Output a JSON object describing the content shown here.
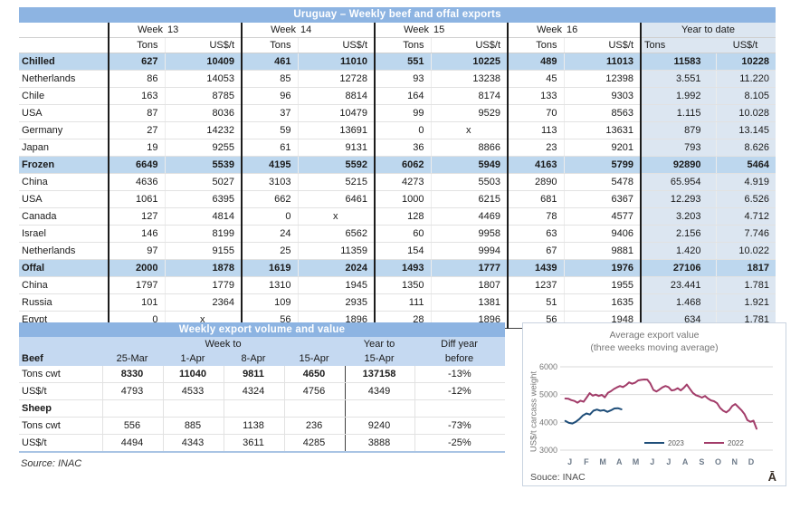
{
  "colors": {
    "title_bar": "#8db4e2",
    "category_row": "#bdd7ee",
    "ytd_background": "#dce6f1",
    "table2_header": "#c5d9f1",
    "line_2023": "#1f4e79",
    "line_2022": "#a23c69"
  },
  "table1": {
    "title": "Uruguay – Weekly beef and offal exports",
    "week_label": "Week",
    "week_numbers": [
      "13",
      "14",
      "15",
      "16"
    ],
    "ytd_label": "Year to date",
    "tons_label": "Tons",
    "usdt_label": "US$/t",
    "rows": [
      {
        "label": "Chilled",
        "category": true,
        "values": [
          "627",
          "10409",
          "461",
          "11010",
          "551",
          "10225",
          "489",
          "11013",
          "11583",
          "10228"
        ]
      },
      {
        "label": "Netherlands",
        "category": false,
        "values": [
          "86",
          "14053",
          "85",
          "12728",
          "93",
          "13238",
          "45",
          "12398",
          "3.551",
          "11.220"
        ]
      },
      {
        "label": "Chile",
        "category": false,
        "values": [
          "163",
          "8785",
          "96",
          "8814",
          "164",
          "8174",
          "133",
          "9303",
          "1.992",
          "8.105"
        ]
      },
      {
        "label": "USA",
        "category": false,
        "values": [
          "87",
          "8036",
          "37",
          "10479",
          "99",
          "9529",
          "70",
          "8563",
          "1.115",
          "10.028"
        ]
      },
      {
        "label": "Germany",
        "category": false,
        "values": [
          "27",
          "14232",
          "59",
          "13691",
          "0",
          "x",
          "113",
          "13631",
          "879",
          "13.145"
        ]
      },
      {
        "label": "Japan",
        "category": false,
        "values": [
          "19",
          "9255",
          "61",
          "9131",
          "36",
          "8866",
          "23",
          "9201",
          "793",
          "8.626"
        ]
      },
      {
        "label": "Frozen",
        "category": true,
        "values": [
          "6649",
          "5539",
          "4195",
          "5592",
          "6062",
          "5949",
          "4163",
          "5799",
          "92890",
          "5464"
        ]
      },
      {
        "label": "China",
        "category": false,
        "values": [
          "4636",
          "5027",
          "3103",
          "5215",
          "4273",
          "5503",
          "2890",
          "5478",
          "65.954",
          "4.919"
        ]
      },
      {
        "label": "USA",
        "category": false,
        "values": [
          "1061",
          "6395",
          "662",
          "6461",
          "1000",
          "6215",
          "681",
          "6367",
          "12.293",
          "6.526"
        ]
      },
      {
        "label": "Canada",
        "category": false,
        "values": [
          "127",
          "4814",
          "0",
          "x",
          "128",
          "4469",
          "78",
          "4577",
          "3.203",
          "4.712"
        ]
      },
      {
        "label": "Israel",
        "category": false,
        "values": [
          "146",
          "8199",
          "24",
          "6562",
          "60",
          "9958",
          "63",
          "9406",
          "2.156",
          "7.746"
        ]
      },
      {
        "label": "Netherlands",
        "category": false,
        "values": [
          "97",
          "9155",
          "25",
          "11359",
          "154",
          "9994",
          "67",
          "9881",
          "1.420",
          "10.022"
        ]
      },
      {
        "label": "Offal",
        "category": true,
        "values": [
          "2000",
          "1878",
          "1619",
          "2024",
          "1493",
          "1777",
          "1439",
          "1976",
          "27106",
          "1817"
        ]
      },
      {
        "label": "China",
        "category": false,
        "values": [
          "1797",
          "1779",
          "1310",
          "1945",
          "1350",
          "1807",
          "1237",
          "1955",
          "23.441",
          "1.781"
        ]
      },
      {
        "label": "Russia",
        "category": false,
        "values": [
          "101",
          "2364",
          "109",
          "2935",
          "111",
          "1381",
          "51",
          "1635",
          "1.468",
          "1.921"
        ]
      },
      {
        "label": "Egypt",
        "category": false,
        "values": [
          "0",
          "x",
          "56",
          "1896",
          "28",
          "1896",
          "56",
          "1948",
          "634",
          "1.781"
        ]
      }
    ]
  },
  "table2": {
    "title": "Weekly export volume and value",
    "group_headers": {
      "week_to": "Week to",
      "year_to": "Year to",
      "diff_year": "Diff year"
    },
    "col_headers": [
      "Beef",
      "25-Mar",
      "1-Apr",
      "8-Apr",
      "15-Apr",
      "15-Apr",
      "before"
    ],
    "rows": [
      {
        "label": "Tons cwt",
        "section": false,
        "bold_values": true,
        "values": [
          "8330",
          "11040",
          "9811",
          "4650",
          "137158",
          "-13%"
        ]
      },
      {
        "label": "US$/t",
        "section": false,
        "bold_values": false,
        "values": [
          "4793",
          "4533",
          "4324",
          "4756",
          "4349",
          "-12%"
        ]
      },
      {
        "label": "Sheep",
        "section": true,
        "bold_values": false,
        "values": [
          "",
          "",
          "",
          "",
          "",
          ""
        ]
      },
      {
        "label": "Tons cwt",
        "section": false,
        "bold_values": false,
        "values": [
          "556",
          "885",
          "1138",
          "236",
          "9240",
          "-73%"
        ]
      },
      {
        "label": "US$/t",
        "section": false,
        "bold_values": false,
        "values": [
          "4494",
          "4343",
          "3611",
          "4285",
          "3888",
          "-25%"
        ]
      }
    ],
    "source": "Source: INAC"
  },
  "chart_data": {
    "type": "line",
    "title": "Average export value",
    "subtitle": "(three weeks moving average)",
    "ylabel": "US$/t carcass weight",
    "ylim": [
      3000,
      6000
    ],
    "yticks": [
      3000,
      4000,
      5000,
      6000
    ],
    "xlim_months": [
      0,
      12.3
    ],
    "xticklabels": [
      "J",
      "F",
      "M",
      "A",
      "M",
      "J",
      "J",
      "A",
      "S",
      "O",
      "N",
      "D"
    ],
    "grid": true,
    "legend_position": "inside-bottom",
    "series": [
      {
        "name": "2023",
        "color": "#1f4e79",
        "x_start": 0.15,
        "x_end": 3.55,
        "values": [
          4050,
          3980,
          3960,
          4020,
          4120,
          4250,
          4320,
          4280,
          4420,
          4460,
          4420,
          4440,
          4380,
          4430,
          4500,
          4510,
          4470
        ]
      },
      {
        "name": "2022",
        "color": "#a23c69",
        "x_start": 0.15,
        "x_end": 11.75,
        "values": [
          4860,
          4850,
          4800,
          4770,
          4710,
          4780,
          4740,
          4890,
          5050,
          4960,
          5000,
          4950,
          4990,
          4900,
          5060,
          5120,
          5200,
          5260,
          5310,
          5270,
          5340,
          5440,
          5390,
          5430,
          5510,
          5530,
          5545,
          5540,
          5400,
          5170,
          5110,
          5180,
          5260,
          5310,
          5270,
          5150,
          5170,
          5230,
          5150,
          5240,
          5360,
          5210,
          5060,
          4980,
          4940,
          4890,
          4950,
          4860,
          4790,
          4760,
          4690,
          4520,
          4420,
          4360,
          4440,
          4590,
          4660,
          4550,
          4440,
          4300,
          4080,
          4020,
          4060,
          3770
        ]
      }
    ],
    "source": "Souce: INAC",
    "corner_glyph": "Ā"
  }
}
